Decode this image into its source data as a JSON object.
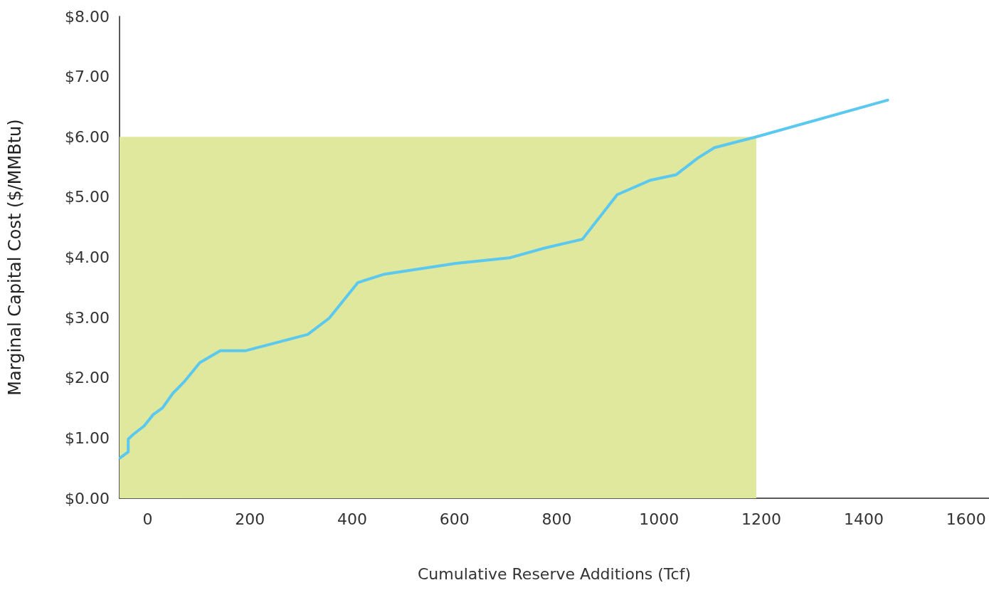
{
  "chart_data": {
    "type": "line",
    "xlabel": "Cumulative Reserve Additions (Tcf)",
    "ylabel": "Marginal Capital Cost ($/MMBtu)",
    "xlim": [
      -55,
      1645
    ],
    "xticks": [
      0,
      200,
      400,
      600,
      800,
      1000,
      1200,
      1400,
      1600
    ],
    "ylim": [
      0,
      8
    ],
    "yticks": [
      {
        "value": 0,
        "label": "$0.00"
      },
      {
        "value": 1,
        "label": "$1.00"
      },
      {
        "value": 2,
        "label": "$2.00"
      },
      {
        "value": 3,
        "label": "$3.00"
      },
      {
        "value": 4,
        "label": "$4.00"
      },
      {
        "value": 5,
        "label": "$5.00"
      },
      {
        "value": 6,
        "label": "$6.00"
      },
      {
        "value": 7,
        "label": "$7.00"
      },
      {
        "value": 8,
        "label": "$8.00"
      }
    ],
    "grid": false,
    "marker": "none",
    "line_style": "solid",
    "series": [
      {
        "type": "area",
        "color": "#dfe89c",
        "x": [
          -55,
          1190
        ],
        "values": [
          6,
          6
        ]
      },
      {
        "color": "#5bc8f0",
        "x": [
          -54,
          -38,
          -38,
          -28,
          -7,
          11,
          29,
          49,
          71,
          102,
          142,
          192,
          313,
          355,
          411,
          463,
          603,
          707,
          779,
          850,
          918,
          983,
          1033,
          1076,
          1108,
          1190,
          1447
        ],
        "values": [
          0.67,
          0.77,
          0.98,
          1.06,
          1.2,
          1.39,
          1.5,
          1.74,
          1.93,
          2.25,
          2.45,
          2.45,
          2.72,
          2.99,
          3.58,
          3.72,
          3.9,
          3.99,
          4.16,
          4.3,
          5.04,
          5.28,
          5.37,
          5.65,
          5.82,
          6.0,
          6.61
        ]
      }
    ]
  }
}
